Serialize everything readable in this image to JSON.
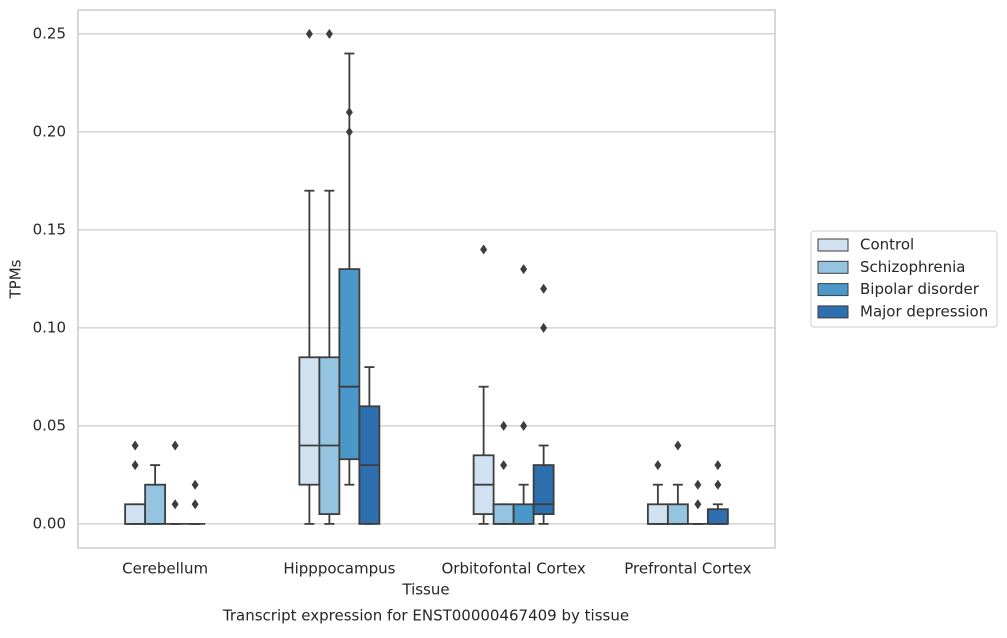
{
  "chart_data": {
    "type": "box",
    "title": "Transcript expression for ENST00000467409 by tissue",
    "xlabel": "Tissue",
    "ylabel": "TPMs",
    "categories": [
      "Cerebellum",
      "Hipppocampus",
      "Orbitofontal Cortex",
      "Prefrontal Cortex"
    ],
    "ylim": [
      -0.0123,
      0.2622
    ],
    "yticks": [
      {
        "value": 0,
        "label": "0.00"
      },
      0.05,
      {
        "value": 0.1,
        "label": "0.10"
      },
      0.15,
      {
        "value": 0.2,
        "label": "0.20"
      },
      0.25
    ],
    "grid": true,
    "legend": "right",
    "series": [
      {
        "name": "Control",
        "color": "#d0e1f2",
        "values": [
          {
            "low": 0,
            "q1": 0,
            "median": 0,
            "q3": 0.01,
            "high": 0.01,
            "outliers": [
              0.04,
              0.03
            ]
          },
          {
            "low": 0,
            "q1": 0.02,
            "median": 0.04,
            "q3": 0.085,
            "high": 0.17,
            "outliers": [
              0.25
            ]
          },
          {
            "low": 0,
            "q1": 0.005,
            "median": 0.02,
            "q3": 0.035,
            "high": 0.07,
            "outliers": [
              0.14
            ]
          },
          {
            "low": 0,
            "q1": 0,
            "median": 0,
            "q3": 0.01,
            "high": 0.02,
            "outliers": [
              0.03
            ]
          }
        ]
      },
      {
        "name": "Schizophrenia",
        "color": "#94c4df",
        "values": [
          {
            "low": 0,
            "q1": 0,
            "median": 0,
            "q3": 0.02,
            "high": 0.03,
            "outliers": []
          },
          {
            "low": 0,
            "q1": 0.005,
            "median": 0.04,
            "q3": 0.085,
            "high": 0.17,
            "outliers": [
              0.25
            ]
          },
          {
            "low": 0,
            "q1": 0,
            "median": 0,
            "q3": 0.01,
            "high": 0.01,
            "outliers": [
              0.05,
              0.03
            ]
          },
          {
            "low": 0,
            "q1": 0,
            "median": 0,
            "q3": 0.01,
            "high": 0.02,
            "outliers": [
              0.04
            ]
          }
        ]
      },
      {
        "name": "Bipolar disorder",
        "color": "#4a98c9",
        "values": [
          {
            "low": 0,
            "q1": 0,
            "median": 0,
            "q3": 0,
            "high": 0,
            "outliers": [
              0.04,
              0.01
            ]
          },
          {
            "low": 0.02,
            "q1": 0.033,
            "median": 0.07,
            "q3": 0.13,
            "high": 0.24,
            "outliers": [
              0.21,
              0.2
            ]
          },
          {
            "low": 0,
            "q1": 0,
            "median": 0,
            "q3": 0.01,
            "high": 0.02,
            "outliers": [
              0.13,
              0.05
            ]
          },
          {
            "low": 0,
            "q1": 0,
            "median": 0,
            "q3": 0,
            "high": 0,
            "outliers": [
              0.02,
              0.01
            ]
          }
        ]
      },
      {
        "name": "Major depression",
        "color": "#2e6fb0",
        "values": [
          {
            "low": 0,
            "q1": 0,
            "median": 0,
            "q3": 0,
            "high": 0,
            "outliers": [
              0.02,
              0.01
            ]
          },
          {
            "low": 0,
            "q1": 0,
            "median": 0.03,
            "q3": 0.06,
            "high": 0.08,
            "outliers": []
          },
          {
            "low": 0,
            "q1": 0.005,
            "median": 0.01,
            "q3": 0.03,
            "high": 0.04,
            "outliers": [
              0.12,
              0.1
            ]
          },
          {
            "low": 0,
            "q1": 0,
            "median": 0,
            "q3": 0.0075,
            "high": 0.01,
            "outliers": [
              0.03,
              0.02
            ]
          }
        ]
      }
    ]
  }
}
